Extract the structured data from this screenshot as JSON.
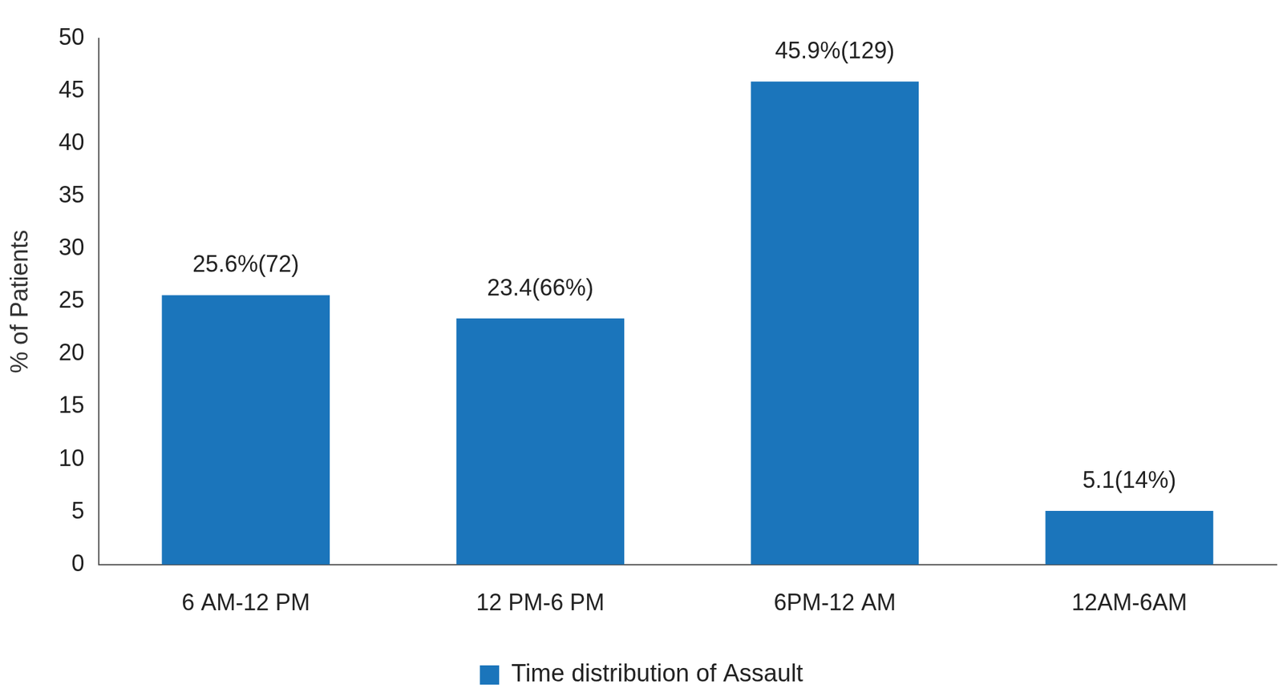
{
  "chart_data": {
    "type": "bar",
    "categories": [
      "6 AM-12 PM",
      "12 PM-6 PM",
      "6PM-12 AM",
      "12AM-6AM"
    ],
    "series": [
      {
        "name": "Time distribution of Assault",
        "color": "#1b75bb",
        "values": [
          25.6,
          23.4,
          45.9,
          5.1
        ],
        "value_labels": [
          "25.6%(72)",
          "23.4(66%)",
          "45.9%(129)",
          "5.1(14%)"
        ]
      }
    ],
    "ylabel": "% of Patients",
    "ylim": [
      0,
      50
    ],
    "yticks": [
      0,
      5,
      10,
      15,
      20,
      25,
      30,
      35,
      40,
      45,
      50
    ],
    "grid": false,
    "legend": "bottom",
    "data_labels": true
  }
}
